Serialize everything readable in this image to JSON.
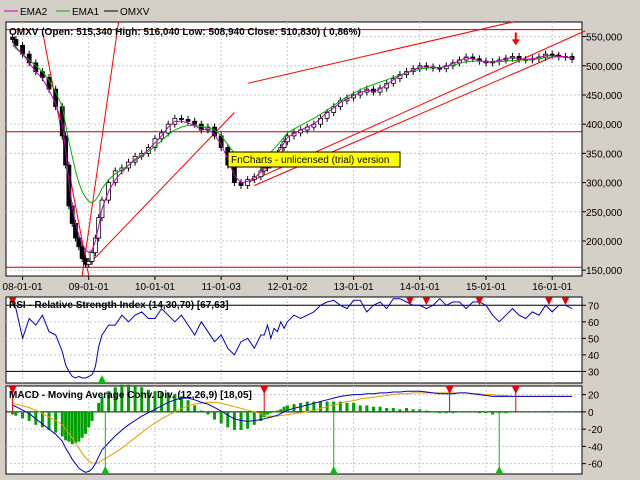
{
  "legend": {
    "items": [
      {
        "name": "EMA2",
        "color": "#c000c0"
      },
      {
        "name": "EMA1",
        "color": "#00b000"
      },
      {
        "name": "OMXV",
        "color": "#000000"
      }
    ]
  },
  "price_panel": {
    "header": "OMXV (Open: 515,340  High: 516,040  Low: 508,940  Close: 510,830) ( 0,86%)",
    "watermark": "FnCharts - unlicensed (trial) version",
    "ticks": [
      "550,000",
      "500,000",
      "450,000",
      "400,000",
      "350,000",
      "300,000",
      "250,000",
      "200,000",
      "150,000"
    ],
    "dates": [
      "08-01-01",
      "09-01-01",
      "10-01-01",
      "11-01-03",
      "12-01-02",
      "13-01-01",
      "14-01-01",
      "15-01-01",
      "16-01-01"
    ]
  },
  "rsi_panel": {
    "header": "RSI - Relative Strength Index (14,30,70) [67,63]",
    "ticks": [
      "70",
      "60",
      "50",
      "40",
      "30"
    ]
  },
  "macd_panel": {
    "header": "MACD - Moving Average Conv. Div. (12,26,9) [18,05]",
    "ticks": [
      "20",
      "0",
      "-20",
      "-40",
      "-60"
    ]
  },
  "chart_data": {
    "type": "candlestick",
    "price": {
      "symbol": "OMXV",
      "open": 515.34,
      "high": 516.04,
      "low": 508.94,
      "close": 510.83,
      "change_pct": 0.86,
      "ylim": [
        140,
        575
      ],
      "hlines": [
        562,
        387,
        155
      ],
      "candles_x": [
        2007.85,
        2007.9,
        2008.0,
        2008.1,
        2008.2,
        2008.3,
        2008.4,
        2008.5,
        2008.6,
        2008.65,
        2008.7,
        2008.75,
        2008.8,
        2008.85,
        2008.9,
        2008.95,
        2009.0,
        2009.05,
        2009.1,
        2009.15,
        2009.2,
        2009.3,
        2009.4,
        2009.5,
        2009.6,
        2009.7,
        2009.8,
        2009.9,
        2010.0,
        2010.1,
        2010.2,
        2010.3,
        2010.4,
        2010.5,
        2010.6,
        2010.7,
        2010.8,
        2010.9,
        2011.0,
        2011.1,
        2011.2,
        2011.3,
        2011.4,
        2011.5,
        2011.6,
        2011.65,
        2011.7,
        2011.75,
        2011.8,
        2011.85,
        2011.9,
        2011.95,
        2012.0,
        2012.1,
        2012.2,
        2012.3,
        2012.4,
        2012.5,
        2012.6,
        2012.7,
        2012.8,
        2012.9,
        2013.0,
        2013.1,
        2013.2,
        2013.3,
        2013.4,
        2013.5,
        2013.6,
        2013.7,
        2013.8,
        2013.9,
        2014.0,
        2014.1,
        2014.2,
        2014.3,
        2014.4,
        2014.5,
        2014.6,
        2014.7,
        2014.8,
        2014.9,
        2015.0,
        2015.1,
        2015.2,
        2015.3,
        2015.4,
        2015.5,
        2015.6,
        2015.7,
        2015.8,
        2015.9,
        2016.0,
        2016.1,
        2016.2,
        2016.3
      ],
      "candles_close": [
        545,
        535,
        520,
        505,
        490,
        480,
        460,
        430,
        380,
        330,
        260,
        230,
        205,
        190,
        170,
        160,
        165,
        180,
        205,
        240,
        270,
        300,
        320,
        325,
        335,
        345,
        350,
        360,
        375,
        385,
        400,
        410,
        408,
        405,
        400,
        390,
        395,
        380,
        360,
        330,
        300,
        295,
        305,
        310,
        320,
        325,
        330,
        335,
        345,
        350,
        360,
        370,
        380,
        385,
        390,
        395,
        400,
        410,
        420,
        430,
        440,
        445,
        450,
        455,
        460,
        455,
        462,
        470,
        478,
        485,
        490,
        495,
        500,
        498,
        496,
        495,
        500,
        505,
        510,
        515,
        512,
        508,
        505,
        507,
        510,
        513,
        516,
        511,
        510,
        512,
        515,
        520,
        518,
        515,
        516,
        511
      ],
      "ema1": [
        535,
        530,
        520,
        510,
        500,
        490,
        475,
        455,
        430,
        400,
        370,
        345,
        320,
        300,
        285,
        275,
        268,
        265,
        270,
        278,
        290,
        305,
        315,
        322,
        330,
        338,
        345,
        353,
        362,
        372,
        382,
        390,
        395,
        398,
        398,
        396,
        394,
        390,
        380,
        365,
        350,
        340,
        336,
        336,
        338,
        342,
        347,
        352,
        358,
        364,
        371,
        378,
        385,
        392,
        398,
        404,
        410,
        417,
        424,
        432,
        440,
        447,
        453,
        459,
        464,
        468,
        472,
        476,
        480,
        484,
        488,
        491,
        494,
        496,
        497,
        497,
        499,
        501,
        504,
        507,
        508,
        508,
        507,
        507,
        507,
        508,
        509,
        510,
        510,
        511,
        512,
        514,
        515,
        515,
        515,
        514
      ],
      "ema2": [
        540,
        532,
        520,
        505,
        490,
        478,
        458,
        435,
        400,
        355,
        300,
        260,
        230,
        210,
        195,
        185,
        180,
        185,
        200,
        225,
        255,
        285,
        305,
        318,
        330,
        340,
        347,
        356,
        368,
        380,
        395,
        405,
        405,
        402,
        398,
        390,
        392,
        382,
        365,
        340,
        312,
        300,
        302,
        308,
        318,
        324,
        330,
        336,
        344,
        350,
        358,
        368,
        377,
        384,
        390,
        395,
        400,
        410,
        420,
        428,
        437,
        443,
        449,
        454,
        458,
        456,
        460,
        468,
        476,
        483,
        488,
        493,
        498,
        498,
        497,
        496,
        499,
        504,
        509,
        514,
        512,
        509,
        506,
        507,
        509,
        512,
        515,
        512,
        511,
        512,
        514,
        518,
        517,
        516,
        516,
        512
      ],
      "annotations": [
        {
          "type": "trendline",
          "from": [
            2008.3,
            560
          ],
          "to": [
            2009.0,
            140
          ]
        },
        {
          "type": "trendline",
          "from": [
            2008.9,
            140
          ],
          "to": [
            2009.45,
            600
          ]
        },
        {
          "type": "trendline",
          "from": [
            2009.0,
            160
          ],
          "to": [
            2011.2,
            420
          ]
        },
        {
          "type": "trendline",
          "from": [
            2011.4,
            300
          ],
          "to": [
            2016.5,
            560
          ]
        },
        {
          "type": "trendline",
          "from": [
            2011.4,
            470
          ],
          "to": [
            2015.4,
            590
          ]
        },
        {
          "type": "trendline",
          "from": [
            2011.5,
            295
          ],
          "to": [
            2016.1,
            520
          ]
        },
        {
          "type": "arrow-down",
          "at": [
            2015.45,
            540
          ]
        }
      ]
    },
    "rsi": {
      "ylim": [
        23,
        75
      ],
      "levels": [
        70,
        30
      ],
      "values": [
        72,
        68,
        50,
        62,
        58,
        64,
        54,
        52,
        42,
        34,
        30,
        27,
        26,
        27,
        26,
        26,
        27,
        28,
        33,
        45,
        52,
        58,
        58,
        64,
        60,
        64,
        66,
        62,
        62,
        68,
        64,
        60,
        64,
        58,
        52,
        60,
        54,
        48,
        52,
        44,
        40,
        48,
        50,
        44,
        52,
        52,
        58,
        50,
        56,
        54,
        60,
        56,
        60,
        64,
        62,
        64,
        66,
        70,
        72,
        73,
        70,
        68,
        73,
        73,
        66,
        70,
        72,
        68,
        74,
        74,
        72,
        70,
        70,
        68,
        70,
        74,
        70,
        72,
        72,
        68,
        72,
        72,
        70,
        64,
        60,
        64,
        68,
        64,
        62,
        66,
        64,
        70,
        66,
        70,
        70,
        68
      ],
      "buy_markers": [
        2009.2
      ],
      "sell_markers": [
        2007.85,
        2013.85,
        2014.1,
        2014.9,
        2015.95,
        2016.2
      ]
    },
    "macd": {
      "ylim": [
        -72,
        30
      ],
      "macd": [
        8,
        6,
        2,
        -2,
        -8,
        -14,
        -20,
        -26,
        -34,
        -42,
        -48,
        -55,
        -60,
        -65,
        -68,
        -70,
        -69,
        -66,
        -60,
        -52,
        -44,
        -36,
        -28,
        -21,
        -15,
        -10,
        -5,
        -1,
        3,
        7,
        11,
        14,
        16,
        16,
        14,
        11,
        9,
        5,
        1,
        -4,
        -8,
        -10,
        -11,
        -10,
        -9,
        -8,
        -7,
        -6,
        -5,
        -4,
        -2,
        0,
        2,
        4,
        6,
        8,
        10,
        12,
        14,
        16,
        18,
        19,
        20,
        20,
        21,
        21,
        22,
        22,
        23,
        23,
        24,
        24,
        24,
        23,
        22,
        21,
        21,
        21,
        22,
        22,
        21,
        20,
        19,
        18,
        18,
        18,
        18,
        18,
        18,
        18,
        18,
        18,
        18,
        18,
        18,
        18
      ],
      "signal": [
        10,
        9,
        7,
        5,
        2,
        -2,
        -6,
        -10,
        -15,
        -20,
        -25,
        -30,
        -36,
        -42,
        -48,
        -53,
        -57,
        -59,
        -60,
        -59,
        -56,
        -52,
        -47,
        -42,
        -36,
        -30,
        -24,
        -18,
        -13,
        -8,
        -4,
        0,
        4,
        7,
        9,
        10,
        11,
        11,
        10,
        8,
        6,
        4,
        2,
        0,
        -2,
        -4,
        -5,
        -5,
        -5,
        -5,
        -4,
        -4,
        -3,
        -2,
        -1,
        0,
        2,
        4,
        6,
        8,
        10,
        12,
        13,
        15,
        16,
        17,
        18,
        19,
        20,
        21,
        21,
        22,
        22,
        22,
        22,
        22,
        22,
        22,
        22,
        22,
        21,
        21,
        20,
        20,
        19,
        19,
        18,
        18,
        18,
        18,
        18,
        18,
        18,
        18,
        18,
        18
      ],
      "buy_markers": [
        2009.25,
        2012.7,
        2015.2
      ],
      "sell_markers": [
        2007.85,
        2011.65,
        2014.45,
        2015.45
      ]
    }
  }
}
